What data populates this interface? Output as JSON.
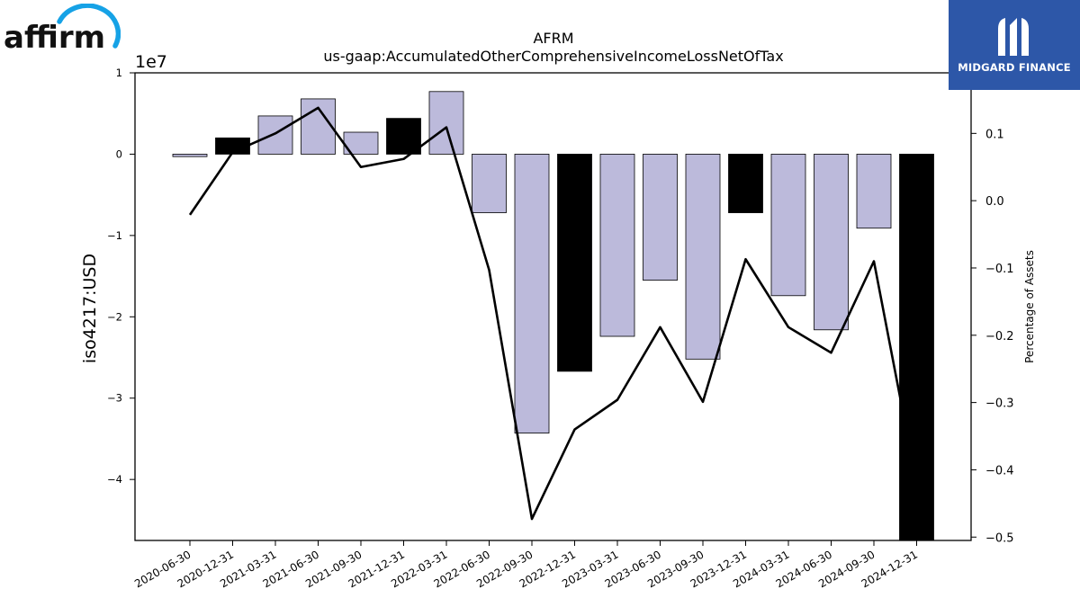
{
  "logos": {
    "left_brand": "affirm",
    "right_brand": "MIDGARD FINANCE"
  },
  "chart_data": {
    "type": "bar",
    "title": "AFRM",
    "subtitle": "us-gaap:AccumulatedOtherComprehensiveIncomeLossNetOfTax",
    "ylabel": "iso4217:USD",
    "y_offset_label": "1e7",
    "y2label": "Percentage of Assets",
    "ylim": [
      -4.75,
      1.0
    ],
    "y2lim": [
      -0.505,
      0.19
    ],
    "yticks": [
      1,
      0,
      -1,
      -2,
      -3,
      -4
    ],
    "ytick_labels": [
      "1",
      "0",
      "−1",
      "−2",
      "−3",
      "−4"
    ],
    "y2ticks": [
      0.1,
      0.0,
      -0.1,
      -0.2,
      -0.3,
      -0.4,
      -0.5
    ],
    "y2tick_labels": [
      "0.1",
      "0.0",
      "−0.1",
      "−0.2",
      "−0.3",
      "−0.4",
      "−0.5"
    ],
    "categories": [
      "2020-06-30",
      "2020-12-31",
      "2021-03-31",
      "2021-06-30",
      "2021-09-30",
      "2021-12-31",
      "2022-03-31",
      "2022-06-30",
      "2022-09-30",
      "2022-12-31",
      "2023-03-31",
      "2023-06-30",
      "2023-09-30",
      "2023-12-31",
      "2024-03-31",
      "2024-06-30",
      "2024-09-30",
      "2024-12-31"
    ],
    "series": [
      {
        "type": "bar",
        "axis": "left",
        "values": [
          -0.03,
          0.2,
          0.47,
          0.68,
          0.27,
          0.44,
          0.77,
          -0.72,
          -3.43,
          -2.67,
          -2.24,
          -1.55,
          -2.52,
          -0.72,
          -1.74,
          -2.16,
          -0.91,
          -4.9
        ],
        "highlight": [
          false,
          true,
          false,
          false,
          false,
          true,
          false,
          false,
          false,
          true,
          false,
          false,
          false,
          true,
          false,
          false,
          false,
          true
        ]
      },
      {
        "type": "line",
        "axis": "right",
        "values": [
          -0.021,
          0.072,
          0.1,
          0.138,
          0.05,
          0.062,
          0.109,
          -0.103,
          -0.473,
          -0.34,
          -0.296,
          -0.188,
          -0.299,
          -0.087,
          -0.188,
          -0.226,
          -0.09,
          -0.42
        ]
      }
    ],
    "colors": {
      "bar": "#bcbadb",
      "bar_highlight": "#000000",
      "bar_edge": "#000000",
      "line": "#000000"
    },
    "grid": false
  }
}
